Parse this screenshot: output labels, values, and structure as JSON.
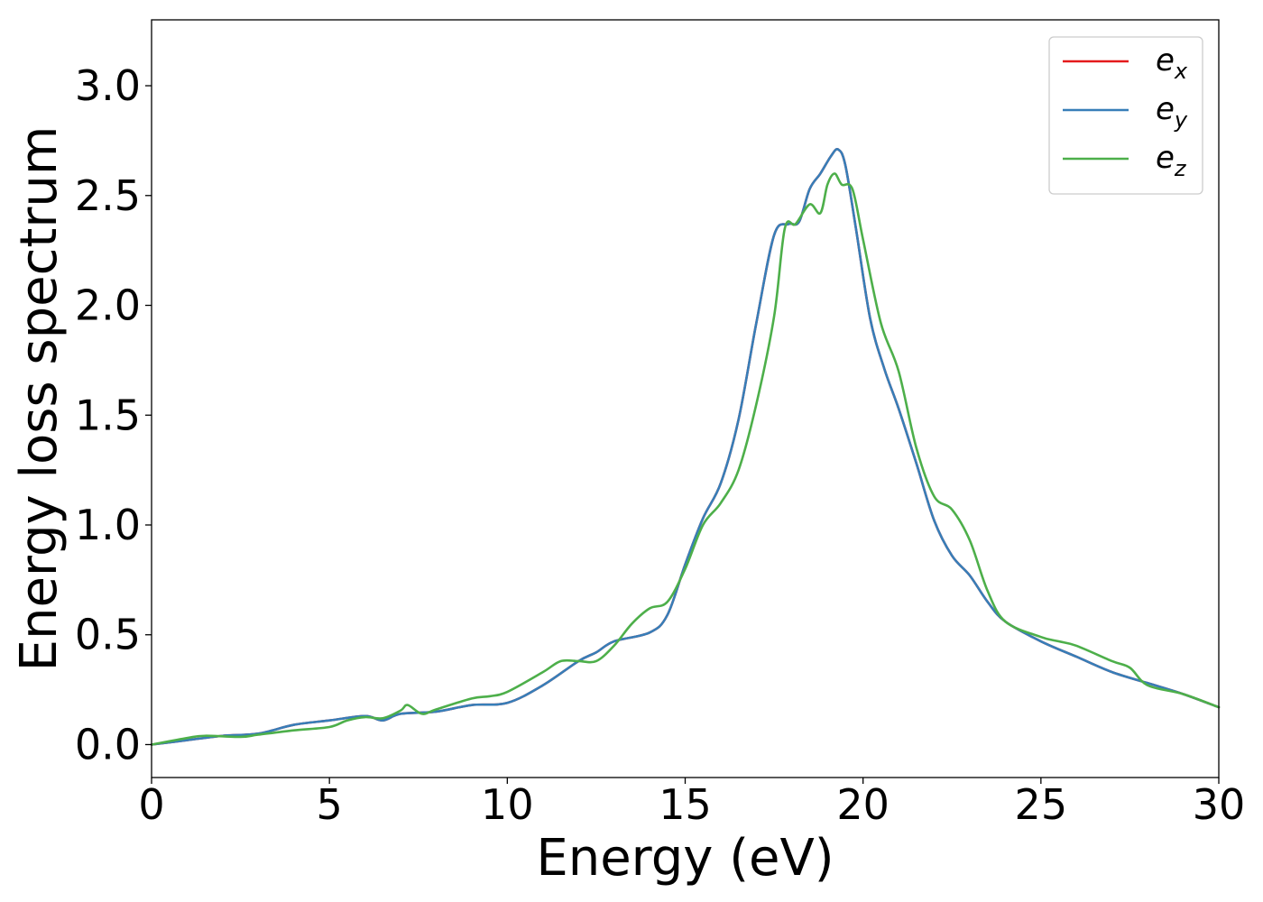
{
  "chart_data": {
    "type": "line",
    "xlabel": "Energy (eV)",
    "ylabel": "Energy loss spectrum",
    "xlim": [
      0,
      30
    ],
    "ylim": [
      -0.15,
      3.3
    ],
    "xticks": [
      "0",
      "5",
      "10",
      "15",
      "20",
      "25",
      "30"
    ],
    "yticks": [
      "0.0",
      "0.5",
      "1.0",
      "1.5",
      "2.0",
      "2.5",
      "3.0"
    ],
    "grid": false,
    "legend_position": "top-right",
    "series": [
      {
        "name": "e",
        "subscript": "x",
        "color": "#e41a1c",
        "x": [
          0,
          1,
          2,
          3,
          4,
          5,
          6,
          6.5,
          7,
          8,
          9,
          10,
          11,
          12,
          12.5,
          13,
          14,
          14.5,
          15,
          15.5,
          16,
          16.5,
          17,
          17.5,
          17.9,
          18.2,
          18.5,
          18.8,
          19.1,
          19.3,
          19.5,
          19.8,
          20.2,
          20.6,
          21,
          21.5,
          22,
          22.5,
          23,
          23.5,
          24,
          25,
          26,
          27,
          28,
          29,
          30
        ],
        "y": [
          0.0,
          0.02,
          0.04,
          0.05,
          0.09,
          0.11,
          0.13,
          0.11,
          0.14,
          0.15,
          0.18,
          0.19,
          0.27,
          0.38,
          0.42,
          0.47,
          0.51,
          0.59,
          0.82,
          1.03,
          1.19,
          1.48,
          1.92,
          2.32,
          2.37,
          2.38,
          2.53,
          2.6,
          2.68,
          2.71,
          2.64,
          2.35,
          1.94,
          1.71,
          1.53,
          1.28,
          1.02,
          0.86,
          0.77,
          0.65,
          0.56,
          0.47,
          0.4,
          0.33,
          0.28,
          0.23,
          0.17
        ]
      },
      {
        "name": "e",
        "subscript": "y",
        "color": "#377eb8",
        "x": [
          0,
          1,
          2,
          3,
          4,
          5,
          6,
          6.5,
          7,
          8,
          9,
          10,
          11,
          12,
          12.5,
          13,
          14,
          14.5,
          15,
          15.5,
          16,
          16.5,
          17,
          17.5,
          17.9,
          18.2,
          18.5,
          18.8,
          19.1,
          19.3,
          19.5,
          19.8,
          20.2,
          20.6,
          21,
          21.5,
          22,
          22.5,
          23,
          23.5,
          24,
          25,
          26,
          27,
          28,
          29,
          30
        ],
        "y": [
          0.0,
          0.02,
          0.04,
          0.05,
          0.09,
          0.11,
          0.13,
          0.11,
          0.14,
          0.15,
          0.18,
          0.19,
          0.27,
          0.38,
          0.42,
          0.47,
          0.51,
          0.59,
          0.82,
          1.03,
          1.19,
          1.48,
          1.92,
          2.32,
          2.37,
          2.38,
          2.53,
          2.6,
          2.68,
          2.71,
          2.64,
          2.35,
          1.94,
          1.71,
          1.53,
          1.28,
          1.02,
          0.86,
          0.77,
          0.65,
          0.56,
          0.47,
          0.4,
          0.33,
          0.28,
          0.23,
          0.17
        ]
      },
      {
        "name": "e",
        "subscript": "z",
        "color": "#4daf4a",
        "x": [
          0,
          1,
          1.5,
          2.5,
          3,
          4,
          5,
          5.5,
          6,
          6.5,
          7,
          7.2,
          7.6,
          8,
          9,
          9.5,
          10,
          11,
          11.5,
          12,
          12.5,
          13,
          13.5,
          14,
          14.5,
          15,
          15.5,
          16,
          16.5,
          17,
          17.5,
          17.8,
          18.1,
          18.5,
          18.8,
          19.0,
          19.2,
          19.4,
          19.7,
          20.0,
          20.5,
          21,
          21.5,
          22,
          22.5,
          23,
          23.5,
          24,
          25,
          25.5,
          26,
          27,
          27.5,
          28,
          29,
          30
        ],
        "y": [
          0.0,
          0.03,
          0.04,
          0.035,
          0.045,
          0.065,
          0.08,
          0.11,
          0.125,
          0.12,
          0.155,
          0.18,
          0.14,
          0.16,
          0.21,
          0.22,
          0.24,
          0.33,
          0.38,
          0.38,
          0.38,
          0.45,
          0.55,
          0.62,
          0.65,
          0.8,
          1.0,
          1.1,
          1.25,
          1.55,
          1.95,
          2.35,
          2.37,
          2.46,
          2.42,
          2.55,
          2.6,
          2.55,
          2.53,
          2.3,
          1.92,
          1.7,
          1.35,
          1.13,
          1.07,
          0.93,
          0.7,
          0.56,
          0.49,
          0.47,
          0.45,
          0.38,
          0.35,
          0.27,
          0.23,
          0.17
        ]
      }
    ]
  }
}
